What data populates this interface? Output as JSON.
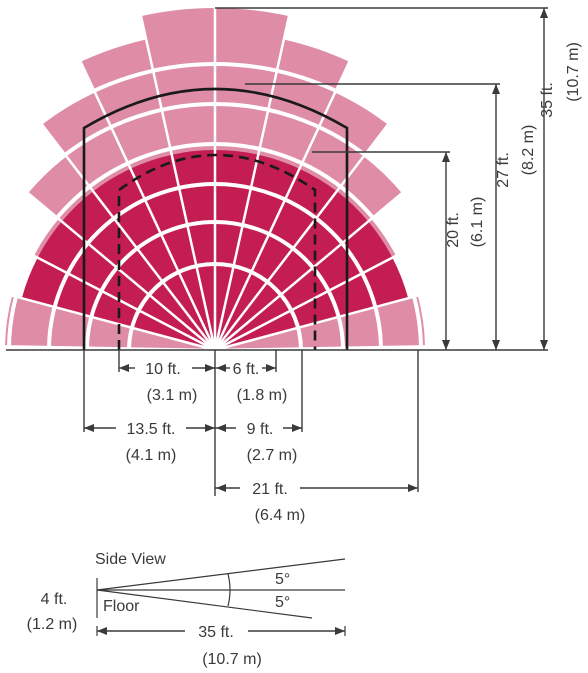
{
  "diagram": {
    "colors": {
      "outer_zone": "#df8da6",
      "inner_zone": "#c41d52",
      "outline": "#1a1a1a",
      "text": "#3a3a3a"
    },
    "ranges": {
      "outer_ft": 35,
      "middle_ft": 27,
      "inner_ft": 20
    },
    "labels": {
      "v35_ft": "35 ft.",
      "v35_m": "(10.7 m)",
      "v27_ft": "27 ft.",
      "v27_m": "(8.2 m)",
      "v20_ft": "20 ft.",
      "v20_m": "(6.1 m)",
      "h10_ft": "10 ft.",
      "h10_m": "(3.1 m)",
      "h6_ft": "6 ft.",
      "h6_m": "(1.8 m)",
      "h135_ft": "13.5 ft.",
      "h135_m": "(4.1 m)",
      "h9_ft": "9 ft.",
      "h9_m": "(2.7 m)",
      "h21_ft": "21 ft.",
      "h21_m": "(6.4 m)"
    }
  },
  "side_view": {
    "title": "Side View",
    "height_ft": "4 ft.",
    "height_m": "(1.2 m)",
    "floor_label": "Floor",
    "angle_top": "5°",
    "angle_bottom": "5°",
    "length_ft": "35 ft.",
    "length_m": "(10.7 m)"
  }
}
